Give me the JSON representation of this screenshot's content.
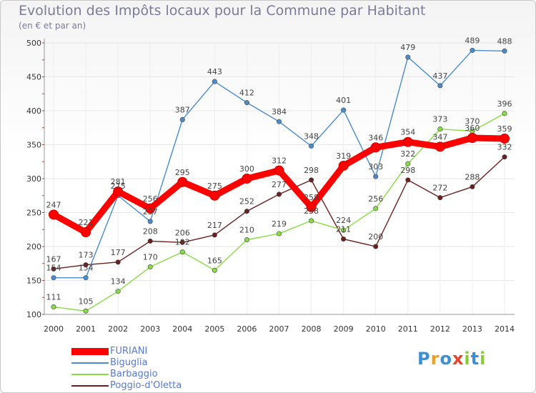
{
  "title": "Evolution des Impôts locaux pour la Commune par Habitant",
  "subtitle": "(en € et par an)",
  "logo_text": "Proxiti",
  "chart_data": {
    "type": "line",
    "title": "Evolution des Impôts locaux pour la Commune par Habitant",
    "subtitle": "(en € et par an)",
    "xlabel": "",
    "ylabel": "",
    "ylim": [
      100,
      500
    ],
    "yticks": [
      100,
      150,
      200,
      250,
      300,
      350,
      400,
      450,
      500
    ],
    "categories": [
      "2000",
      "2001",
      "2002",
      "2003",
      "2004",
      "2005",
      "2006",
      "2007",
      "2008",
      "2009",
      "2010",
      "2011",
      "2012",
      "2013",
      "2014"
    ],
    "legend_position": "bottom-left",
    "series": [
      {
        "name": "FURIANI",
        "color": "#ff0000",
        "values": [
          247,
          221,
          281,
          256,
          295,
          275,
          300,
          312,
          258,
          319,
          346,
          354,
          347,
          360,
          359
        ]
      },
      {
        "name": "Biguglia",
        "color": "#4a8ccc",
        "values": [
          154,
          154,
          275,
          237,
          387,
          443,
          412,
          384,
          348,
          401,
          303,
          479,
          437,
          489,
          488
        ]
      },
      {
        "name": "Barbaggio",
        "color": "#88dd44",
        "values": [
          111,
          105,
          134,
          170,
          192,
          165,
          210,
          219,
          238,
          224,
          256,
          322,
          373,
          370,
          396
        ]
      },
      {
        "name": "Poggio-d'Oletta",
        "color": "#6b1f1f",
        "values": [
          167,
          173,
          177,
          208,
          206,
          217,
          252,
          277,
          298,
          211,
          200,
          298,
          272,
          288,
          332
        ]
      }
    ]
  }
}
